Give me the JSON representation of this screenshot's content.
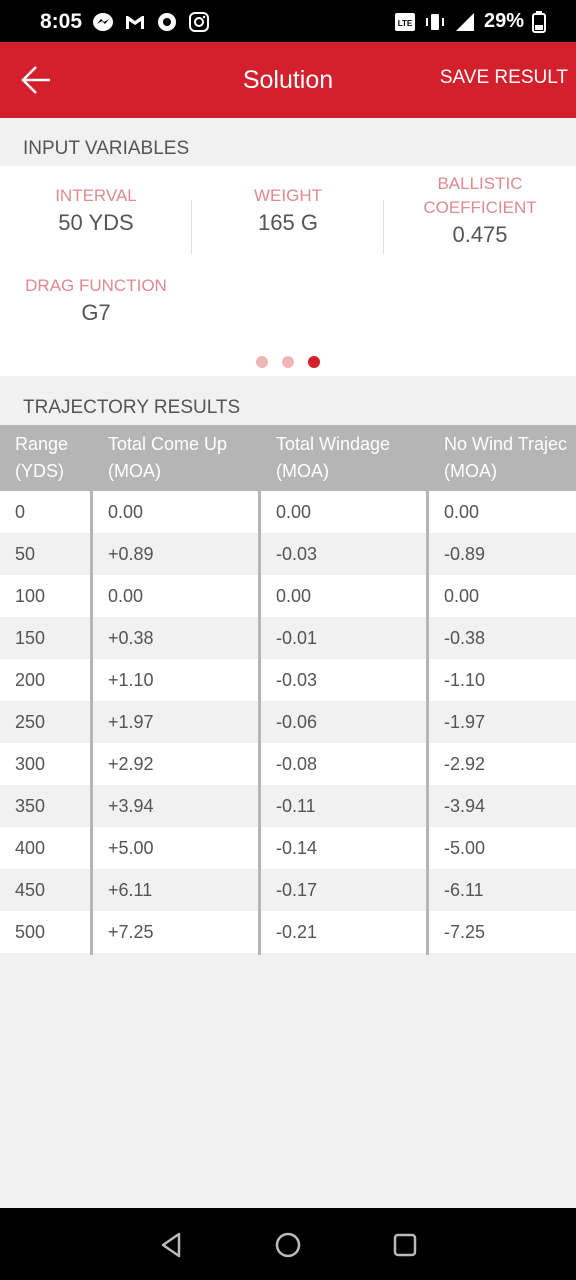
{
  "status_bar": {
    "time": "8:05",
    "left_icons": [
      "messenger-icon",
      "gmail-icon",
      "app-icon",
      "instagram-icon"
    ],
    "battery": "29%",
    "right_icons": [
      "volte-icon",
      "vibrate-icon",
      "signal-icon",
      "battery-icon"
    ]
  },
  "app_bar": {
    "title": "Solution",
    "save_label": "SAVE RESULT",
    "back_icon": "arrow-left-icon"
  },
  "input_section": {
    "header": "INPUT VARIABLES",
    "interval": {
      "label": "INTERVAL",
      "value": "50 YDS"
    },
    "weight": {
      "label": "WEIGHT",
      "value": "165 G"
    },
    "bc": {
      "label_line1": "BALLISTIC",
      "label_line2": "COEFFICIENT",
      "value": "0.475"
    },
    "drag": {
      "label": "DRAG FUNCTION",
      "value": "G7"
    },
    "page_count": 3,
    "active_page": 3
  },
  "trajectory": {
    "header": "TRAJECTORY RESULTS",
    "columns": [
      {
        "line1": "Range",
        "line2": "(YDS)"
      },
      {
        "line1": "Total Come Up",
        "line2": "(MOA)"
      },
      {
        "line1": "Total Windage",
        "line2": "(MOA)"
      },
      {
        "line1": "No Wind Trajec",
        "line2": "(MOA)"
      }
    ],
    "rows": [
      [
        "0",
        "0.00",
        "0.00",
        "0.00"
      ],
      [
        "50",
        "+0.89",
        "-0.03",
        "-0.89"
      ],
      [
        "100",
        "0.00",
        "0.00",
        "0.00"
      ],
      [
        "150",
        "+0.38",
        "-0.01",
        "-0.38"
      ],
      [
        "200",
        "+1.10",
        "-0.03",
        "-1.10"
      ],
      [
        "250",
        "+1.97",
        "-0.06",
        "-1.97"
      ],
      [
        "300",
        "+2.92",
        "-0.08",
        "-2.92"
      ],
      [
        "350",
        "+3.94",
        "-0.11",
        "-3.94"
      ],
      [
        "400",
        "+5.00",
        "-0.14",
        "-5.00"
      ],
      [
        "450",
        "+6.11",
        "-0.17",
        "-6.11"
      ],
      [
        "500",
        "+7.25",
        "-0.21",
        "-7.25"
      ]
    ]
  },
  "nav_bar": {
    "icons": [
      "back-nav-icon",
      "home-nav-icon",
      "recents-nav-icon"
    ]
  },
  "colors": {
    "accent": "#d3202c",
    "label": "#e08a8f",
    "header_bg": "#b5b5b5"
  }
}
